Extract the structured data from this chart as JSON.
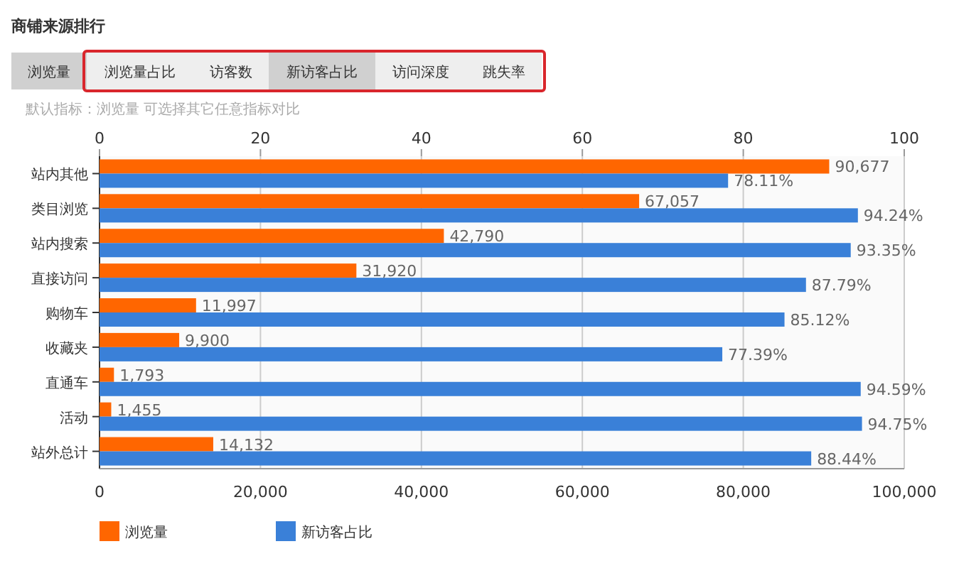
{
  "chart_data": {
    "type": "bar",
    "orientation": "horizontal",
    "title": "商铺来源排行",
    "subtitle": "默认指标：浏览量 可选择其它任意指标对比",
    "annotations": [
      "浏览量",
      "浏览量占比",
      "访客数",
      "新访客占比",
      "访问深度",
      "跳失率"
    ],
    "categories": [
      "站内其他",
      "类目浏览",
      "站内搜索",
      "直接访问",
      "购物车",
      "收藏夹",
      "直通车",
      "活动",
      "站外总计"
    ],
    "series": [
      {
        "name": "浏览量",
        "color": "#ff6600",
        "values": [
          90677,
          67057,
          42790,
          31920,
          11997,
          9900,
          1793,
          1455,
          14132
        ],
        "value_labels": [
          "90,677",
          "67,057",
          "42,790",
          "31,920",
          "11,997",
          "9,900",
          "1,793",
          "1,455",
          "14,132"
        ]
      },
      {
        "name": "新访客占比",
        "color": "#3a80d8",
        "axis": "x2",
        "values": [
          78.11,
          94.24,
          93.35,
          87.79,
          85.12,
          77.39,
          94.59,
          94.75,
          88.44
        ],
        "value_labels": [
          "78.11%",
          "94.24%",
          "93.35%",
          "87.79%",
          "85.12%",
          "77.39%",
          "94.59%",
          "94.75%",
          "88.44%"
        ]
      }
    ],
    "xlim": [
      0,
      100000
    ],
    "xticks": [
      0,
      {
        "value": 20000,
        "label": "20,000"
      },
      {
        "value": 40000,
        "label": "40,000"
      },
      {
        "value": 60000,
        "label": "60,000"
      },
      {
        "value": 80000,
        "label": "80,000"
      },
      {
        "value": 100000,
        "label": "100,000"
      }
    ],
    "x2lim": [
      0,
      100
    ],
    "x2ticks": [
      0,
      20,
      40,
      60,
      80,
      100
    ],
    "grid": "x",
    "legend": "bottom left"
  }
}
